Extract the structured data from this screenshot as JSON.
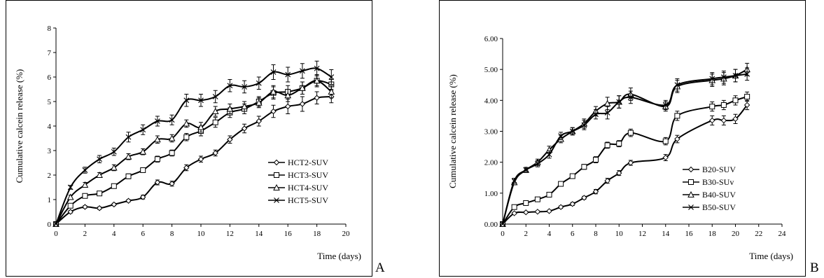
{
  "panel_letters": [
    "A",
    "B"
  ],
  "chart_data": [
    {
      "type": "line",
      "panel": "A",
      "title": "",
      "xlabel": "Time (days)",
      "ylabel": "Cumulative calcein release (%)",
      "xlim": [
        0,
        20
      ],
      "ylim": [
        0,
        8
      ],
      "x_ticks": [
        "0",
        "2",
        "4",
        "6",
        "8",
        "10",
        "12",
        "14",
        "16",
        "18",
        "20"
      ],
      "y_ticks": [
        "0",
        "1",
        "2",
        "3",
        "4",
        "5",
        "6",
        "7",
        "8"
      ],
      "x_tick_values": [
        0,
        2,
        4,
        6,
        8,
        10,
        12,
        14,
        16,
        18,
        20
      ],
      "y_tick_values": [
        0,
        1,
        2,
        3,
        4,
        5,
        6,
        7,
        8
      ],
      "legend_position": "right",
      "x": [
        0,
        1,
        2,
        3,
        4,
        5,
        6,
        7,
        8,
        9,
        10,
        11,
        12,
        13,
        14,
        15,
        16,
        17,
        18,
        19
      ],
      "series": [
        {
          "name": "HCT2-SUV",
          "marker": "diamond",
          "values": [
            0,
            0.5,
            0.7,
            0.65,
            0.8,
            0.95,
            1.1,
            1.7,
            1.65,
            2.3,
            2.65,
            2.9,
            3.45,
            3.9,
            4.2,
            4.6,
            4.8,
            4.9,
            5.15,
            5.2
          ],
          "error": [
            0,
            0.05,
            0.05,
            0.05,
            0.05,
            0.05,
            0.08,
            0.1,
            0.1,
            0.12,
            0.12,
            0.12,
            0.15,
            0.18,
            0.2,
            0.25,
            0.3,
            0.3,
            0.25,
            0.25
          ]
        },
        {
          "name": "HCT3-SUV",
          "marker": "square",
          "values": [
            0,
            0.75,
            1.15,
            1.25,
            1.55,
            1.95,
            2.2,
            2.65,
            2.9,
            3.55,
            3.8,
            4.15,
            4.55,
            4.7,
            5.0,
            5.35,
            5.4,
            5.55,
            5.85,
            5.7
          ],
          "error": [
            0,
            0.05,
            0.07,
            0.07,
            0.08,
            0.1,
            0.1,
            0.12,
            0.12,
            0.15,
            0.2,
            0.2,
            0.2,
            0.2,
            0.2,
            0.25,
            0.25,
            0.25,
            0.2,
            0.2
          ]
        },
        {
          "name": "HCT4-SUV",
          "marker": "triangle",
          "values": [
            0,
            1.1,
            1.6,
            2.0,
            2.3,
            2.75,
            2.95,
            3.45,
            3.5,
            4.1,
            3.95,
            4.6,
            4.7,
            4.8,
            4.95,
            5.4,
            5.25,
            5.55,
            5.85,
            5.4
          ],
          "error": [
            0,
            0.08,
            0.1,
            0.1,
            0.12,
            0.12,
            0.12,
            0.15,
            0.15,
            0.15,
            0.2,
            0.2,
            0.2,
            0.2,
            0.2,
            0.25,
            0.25,
            0.25,
            0.25,
            0.25
          ]
        },
        {
          "name": "HCT5-SUV",
          "marker": "x",
          "values": [
            0,
            1.5,
            2.2,
            2.65,
            2.95,
            3.55,
            3.85,
            4.2,
            4.25,
            5.05,
            5.05,
            5.2,
            5.65,
            5.6,
            5.75,
            6.2,
            6.1,
            6.25,
            6.35,
            6.0
          ],
          "error": [
            0,
            0.08,
            0.12,
            0.15,
            0.15,
            0.2,
            0.2,
            0.2,
            0.2,
            0.25,
            0.25,
            0.25,
            0.25,
            0.25,
            0.25,
            0.3,
            0.3,
            0.3,
            0.3,
            0.3
          ]
        }
      ]
    },
    {
      "type": "line",
      "panel": "B",
      "title": "",
      "xlabel": "Time (days)",
      "ylabel": "Cumulative calcein release (%)",
      "xlim": [
        0,
        24
      ],
      "ylim": [
        0,
        6
      ],
      "x_ticks": [
        "0",
        "2",
        "4",
        "6",
        "8",
        "10",
        "12",
        "14",
        "16",
        "18",
        "20",
        "22",
        "24"
      ],
      "y_ticks": [
        "0.00",
        "1.00",
        "2.00",
        "3.00",
        "4.00",
        "5.00",
        "6.00"
      ],
      "x_tick_values": [
        0,
        2,
        4,
        6,
        8,
        10,
        12,
        14,
        16,
        18,
        20,
        22,
        24
      ],
      "y_tick_values": [
        0,
        1,
        2,
        3,
        4,
        5,
        6
      ],
      "legend_position": "right",
      "x": [
        0,
        1,
        2,
        3,
        4,
        5,
        6,
        7,
        8,
        9,
        10,
        11,
        14,
        15,
        18,
        19,
        20,
        21
      ],
      "series": [
        {
          "name": "B20-SUV",
          "marker": "diamond",
          "values": [
            0,
            0.35,
            0.38,
            0.4,
            0.42,
            0.55,
            0.65,
            0.85,
            1.05,
            1.4,
            1.65,
            1.98,
            2.15,
            2.75,
            3.35,
            3.35,
            3.4,
            3.85
          ],
          "error": [
            0,
            0.03,
            0.03,
            0.03,
            0.03,
            0.04,
            0.05,
            0.05,
            0.07,
            0.08,
            0.08,
            0.08,
            0.1,
            0.12,
            0.15,
            0.15,
            0.15,
            0.15
          ]
        },
        {
          "name": "B30-SUv",
          "marker": "square",
          "values": [
            0,
            0.55,
            0.68,
            0.8,
            0.95,
            1.3,
            1.55,
            1.85,
            2.08,
            2.55,
            2.6,
            2.95,
            2.68,
            3.5,
            3.8,
            3.85,
            4.0,
            4.12
          ],
          "error": [
            0,
            0.04,
            0.04,
            0.05,
            0.05,
            0.06,
            0.07,
            0.08,
            0.1,
            0.1,
            0.1,
            0.12,
            0.12,
            0.15,
            0.15,
            0.15,
            0.15,
            0.15
          ]
        },
        {
          "name": "B40-SUV",
          "marker": "triangle",
          "values": [
            0,
            1.35,
            1.75,
            2.0,
            2.4,
            2.75,
            3.0,
            3.25,
            3.65,
            3.9,
            3.95,
            4.2,
            3.8,
            4.45,
            4.65,
            4.7,
            4.8,
            5.0
          ],
          "error": [
            0,
            0.08,
            0.08,
            0.1,
            0.12,
            0.12,
            0.12,
            0.15,
            0.15,
            0.2,
            0.2,
            0.2,
            0.15,
            0.2,
            0.2,
            0.2,
            0.2,
            0.2
          ]
        },
        {
          "name": "B50-SUV",
          "marker": "x",
          "values": [
            0,
            1.4,
            1.75,
            1.95,
            2.25,
            2.85,
            3.0,
            3.2,
            3.55,
            3.6,
            3.95,
            4.1,
            3.85,
            4.5,
            4.7,
            4.75,
            4.8,
            4.85
          ],
          "error": [
            0,
            0.08,
            0.08,
            0.1,
            0.12,
            0.12,
            0.12,
            0.15,
            0.15,
            0.2,
            0.2,
            0.2,
            0.15,
            0.2,
            0.2,
            0.2,
            0.2,
            0.2
          ]
        }
      ]
    }
  ]
}
